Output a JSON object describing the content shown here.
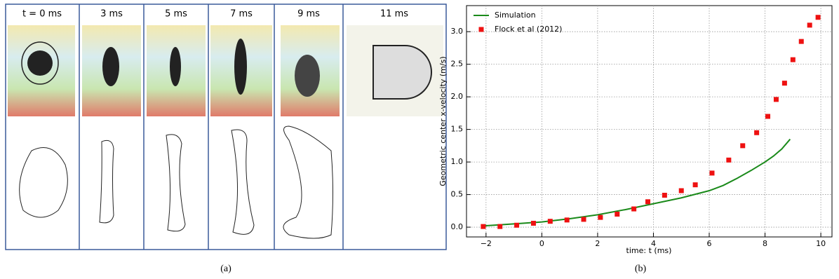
{
  "panel_a": {
    "frames": [
      "t = 0 ms",
      "3 ms",
      "5 ms",
      "7 ms",
      "9 ms",
      "11 ms"
    ],
    "caption": "(a)"
  },
  "chart_data": {
    "type": "line",
    "caption": "(b)",
    "xlabel": "time: t (ms)",
    "ylabel": "Geometric center x-velocity (m/s)",
    "xlim": [
      -2.7,
      10.4
    ],
    "ylim": [
      -0.15,
      3.4
    ],
    "xticks": [
      {
        "value": -2,
        "label": "−2"
      },
      0,
      2,
      4,
      6,
      8,
      10
    ],
    "yticks": [
      {
        "value": 0,
        "label": "0.0"
      },
      0.5,
      {
        "value": 1,
        "label": "1.0"
      },
      1.5,
      {
        "value": 2,
        "label": "2.0"
      },
      2.5,
      {
        "value": 3,
        "label": "3.0"
      }
    ],
    "grid": true,
    "legend": "upper left",
    "series": [
      {
        "name": "Simulation",
        "color": "#1a8a1a",
        "kind": "line",
        "x": [
          -2.1,
          -1,
          0,
          1,
          2,
          3,
          4,
          5,
          6,
          6.5,
          7,
          7.5,
          8,
          8.3,
          8.6,
          8.9
        ],
        "values": [
          0.02,
          0.05,
          0.08,
          0.13,
          0.19,
          0.27,
          0.36,
          0.45,
          0.56,
          0.64,
          0.75,
          0.87,
          1.0,
          1.09,
          1.2,
          1.35
        ]
      },
      {
        "name": "Flock et al (2012)",
        "color": "#ee1111",
        "kind": "scatter",
        "x": [
          -2.1,
          -1.5,
          -0.9,
          -0.3,
          0.3,
          0.9,
          1.5,
          2.1,
          2.7,
          3.3,
          3.8,
          4.4,
          5.0,
          5.5,
          6.1,
          6.7,
          7.2,
          7.7,
          8.1,
          8.4,
          8.7,
          9.0,
          9.3,
          9.6,
          9.9
        ],
        "values": [
          0.01,
          0.01,
          0.03,
          0.06,
          0.09,
          0.11,
          0.12,
          0.15,
          0.2,
          0.28,
          0.39,
          0.49,
          0.56,
          0.65,
          0.83,
          1.03,
          1.25,
          1.45,
          1.7,
          1.96,
          2.21,
          2.57,
          2.85,
          3.1,
          3.22
        ]
      }
    ]
  }
}
